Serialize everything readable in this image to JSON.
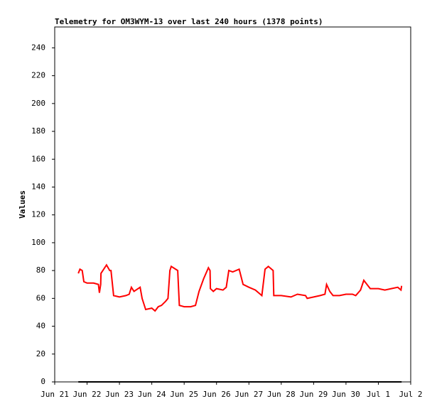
{
  "chart_data": {
    "type": "line",
    "title": "Telemetry for OM3WYM-13 over last 240 hours (1378 points)",
    "y_label": "Values",
    "xlim": [
      0,
      11
    ],
    "xticks": [
      {
        "value": 0,
        "label": "Jun 21"
      },
      {
        "value": 1,
        "label": "Jun 22"
      },
      {
        "value": 2,
        "label": "Jun 23"
      },
      {
        "value": 3,
        "label": "Jun 24"
      },
      {
        "value": 4,
        "label": "Jun 25"
      },
      {
        "value": 5,
        "label": "Jun 26"
      },
      {
        "value": 6,
        "label": "Jun 27"
      },
      {
        "value": 7,
        "label": "Jun 28"
      },
      {
        "value": 8,
        "label": "Jun 29"
      },
      {
        "value": 9,
        "label": "Jun 30"
      },
      {
        "value": 10,
        "label": "Jul 1"
      },
      {
        "value": 11,
        "label": "Jul 2"
      }
    ],
    "ylim": [
      0,
      255
    ],
    "yticks": [
      0,
      20,
      40,
      60,
      80,
      100,
      120,
      140,
      160,
      180,
      200,
      220,
      240
    ],
    "series": [
      {
        "color": "#ff0000",
        "x": [
          0.73,
          0.78,
          0.85,
          0.9,
          1.0,
          1.2,
          1.35,
          1.38,
          1.42,
          1.43,
          1.6,
          1.7,
          1.74,
          1.82,
          2.0,
          2.2,
          2.3,
          2.37,
          2.45,
          2.64,
          2.7,
          2.81,
          3.0,
          3.1,
          3.2,
          3.3,
          3.43,
          3.5,
          3.56,
          3.6,
          3.8,
          3.85,
          4.0,
          4.2,
          4.35,
          4.46,
          4.6,
          4.75,
          4.8,
          4.81,
          4.9,
          5.0,
          5.2,
          5.3,
          5.38,
          5.5,
          5.7,
          5.82,
          6.0,
          6.2,
          6.4,
          6.5,
          6.6,
          6.75,
          6.77,
          7.0,
          7.3,
          7.5,
          7.75,
          7.8,
          8.0,
          8.2,
          8.35,
          8.4,
          8.5,
          8.6,
          8.8,
          9.0,
          9.2,
          9.3,
          9.45,
          9.55,
          9.65,
          9.75,
          10.0,
          10.2,
          10.4,
          10.6,
          10.7,
          10.72
        ],
        "values": [
          78,
          81,
          80,
          72,
          71,
          71,
          70,
          64,
          70,
          78,
          84,
          80,
          80,
          62,
          61,
          62,
          63,
          68,
          65,
          68,
          60,
          52,
          53,
          51,
          54,
          55,
          58,
          60,
          80,
          83,
          80,
          55,
          54,
          54,
          55,
          65,
          74,
          82,
          80,
          67,
          65,
          67,
          66,
          68,
          80,
          79,
          81,
          70,
          68,
          66,
          62,
          81,
          83,
          80,
          62,
          62,
          61,
          63,
          62,
          60,
          61,
          62,
          63,
          70,
          65,
          62,
          62,
          63,
          63,
          62,
          66,
          73,
          70,
          67,
          67,
          66,
          67,
          68,
          66,
          69
        ]
      },
      {
        "color": "#000000",
        "x": [
          0.73,
          10.72
        ],
        "values": [
          0,
          0
        ]
      }
    ]
  }
}
